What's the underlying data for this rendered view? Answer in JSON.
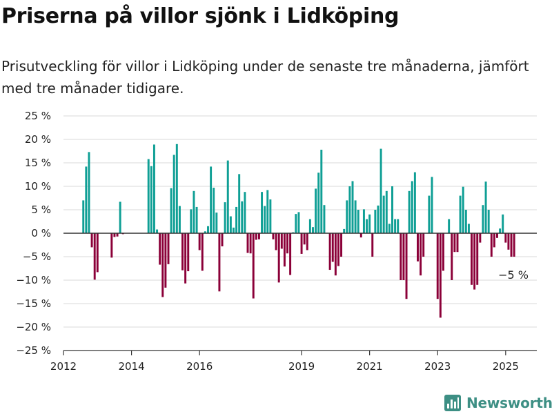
{
  "title": "Priserna på villor sjönk i Lidköping",
  "subtitle": "Prisutveckling för villor i Lidköping under de senaste tre månaderna, jämfört med tre månader tidigare.",
  "brand": "Newsworthy",
  "colors": {
    "positive": "#0f9f95",
    "negative": "#8b0038",
    "grid": "#d9d9d9",
    "axis": "#333333",
    "logo": "#3d8f84"
  },
  "chart_data": {
    "type": "bar",
    "title": "Priserna på villor sjönk i Lidköping",
    "xlabel": "",
    "ylabel": "",
    "ylim": [
      -25,
      25
    ],
    "yticks": [
      25,
      20,
      15,
      10,
      5,
      0,
      -5,
      -10,
      -15,
      -20,
      -25
    ],
    "ytick_labels": [
      "25 %",
      "20 %",
      "15 %",
      "10 %",
      "5 %",
      "0 %",
      "−5 %",
      "−10 %",
      "−15 %",
      "−20 %",
      "−25 %"
    ],
    "xlim": [
      "2012-01",
      "2025-12"
    ],
    "xticks": [
      "2012-01",
      "2014-01",
      "2016-01",
      "2019-01",
      "2021-01",
      "2023-01",
      "2025-01"
    ],
    "xtick_labels": [
      "2012",
      "2014",
      "2016",
      "2019",
      "2021",
      "2023",
      "2025"
    ],
    "grid": true,
    "annotation": {
      "text": "−5 %",
      "x": "2025-04",
      "y": -5
    },
    "x": [
      "2012-08",
      "2012-09",
      "2012-10",
      "2012-11",
      "2012-12",
      "2013-01",
      "2013-06",
      "2013-07",
      "2013-08",
      "2013-09",
      "2013-10",
      "2014-07",
      "2014-08",
      "2014-09",
      "2014-10",
      "2014-11",
      "2014-12",
      "2015-01",
      "2015-02",
      "2015-03",
      "2015-04",
      "2015-05",
      "2015-06",
      "2015-07",
      "2015-08",
      "2015-09",
      "2015-10",
      "2015-11",
      "2015-12",
      "2016-01",
      "2016-02",
      "2016-03",
      "2016-04",
      "2016-05",
      "2016-06",
      "2016-07",
      "2016-08",
      "2016-09",
      "2016-10",
      "2016-11",
      "2016-12",
      "2017-01",
      "2017-02",
      "2017-03",
      "2017-04",
      "2017-05",
      "2017-06",
      "2017-07",
      "2017-08",
      "2017-09",
      "2017-10",
      "2017-11",
      "2017-12",
      "2018-01",
      "2018-02",
      "2018-03",
      "2018-04",
      "2018-05",
      "2018-06",
      "2018-07",
      "2018-08",
      "2018-09",
      "2018-10",
      "2018-11",
      "2018-12",
      "2019-01",
      "2019-02",
      "2019-03",
      "2019-04",
      "2019-05",
      "2019-06",
      "2019-07",
      "2019-08",
      "2019-09",
      "2019-10",
      "2019-11",
      "2019-12",
      "2020-01",
      "2020-02",
      "2020-03",
      "2020-04",
      "2020-05",
      "2020-06",
      "2020-07",
      "2020-08",
      "2020-09",
      "2020-10",
      "2020-11",
      "2020-12",
      "2021-01",
      "2021-02",
      "2021-03",
      "2021-04",
      "2021-05",
      "2021-06",
      "2021-07",
      "2021-08",
      "2021-09",
      "2021-10",
      "2021-11",
      "2021-12",
      "2022-01",
      "2022-02",
      "2022-03",
      "2022-04",
      "2022-05",
      "2022-06",
      "2022-07",
      "2022-08",
      "2022-09",
      "2022-10",
      "2022-11",
      "2022-12",
      "2023-01",
      "2023-02",
      "2023-03",
      "2023-04",
      "2023-05",
      "2023-06",
      "2023-07",
      "2023-08",
      "2023-09",
      "2023-10",
      "2023-11",
      "2023-12",
      "2024-01",
      "2024-02",
      "2024-03",
      "2024-04",
      "2024-05",
      "2024-06",
      "2024-07",
      "2024-08",
      "2024-09",
      "2024-10",
      "2024-11",
      "2024-12",
      "2025-01",
      "2025-02",
      "2025-03",
      "2025-04"
    ],
    "values": [
      7,
      14.2,
      17.3,
      -3,
      -9.9,
      -8.3,
      -5.2,
      -0.8,
      -0.7,
      6.7,
      -0.2,
      15.8,
      14.3,
      18.9,
      0.8,
      -6.7,
      -13.6,
      -11.6,
      -6.6,
      9.6,
      16.7,
      19.0,
      5.8,
      -7.9,
      -10.7,
      -8.1,
      5.1,
      9,
      5.6,
      -3.6,
      -8.0,
      0.4,
      1.5,
      14.2,
      9.7,
      4.4,
      -12.4,
      -2.8,
      6.6,
      15.5,
      3.6,
      1.2,
      5.6,
      12.6,
      6.8,
      8.8,
      -4.2,
      -4.3,
      -13.9,
      -1.4,
      -1.3,
      8.8,
      5.8,
      9.2,
      7.2,
      -1.3,
      -3.6,
      -10.5,
      -3.3,
      -7.1,
      -4.3,
      -8.9,
      0.2,
      4.1,
      4.5,
      -4.4,
      -2.4,
      -3.6,
      3,
      1.3,
      9.5,
      12.9,
      17.8,
      6,
      0.1,
      -7.8,
      -6.1,
      -9,
      -7,
      -5,
      0.9,
      7,
      10,
      11.1,
      7,
      5,
      -0.9,
      5.1,
      3,
      4,
      -5,
      5,
      5.9,
      18,
      8,
      9,
      2,
      10,
      3,
      3,
      -10,
      -10,
      -14,
      9,
      11.1,
      13,
      -6,
      -9,
      -5,
      0,
      8,
      12,
      0,
      -14,
      -18,
      -8,
      0,
      3,
      -10,
      -4,
      -4,
      8,
      9.9,
      5,
      2,
      -11,
      -12,
      -11,
      -2,
      6,
      11,
      5,
      -5,
      -3,
      -1,
      1,
      4,
      -2,
      -3.5,
      -5,
      -5
    ]
  }
}
